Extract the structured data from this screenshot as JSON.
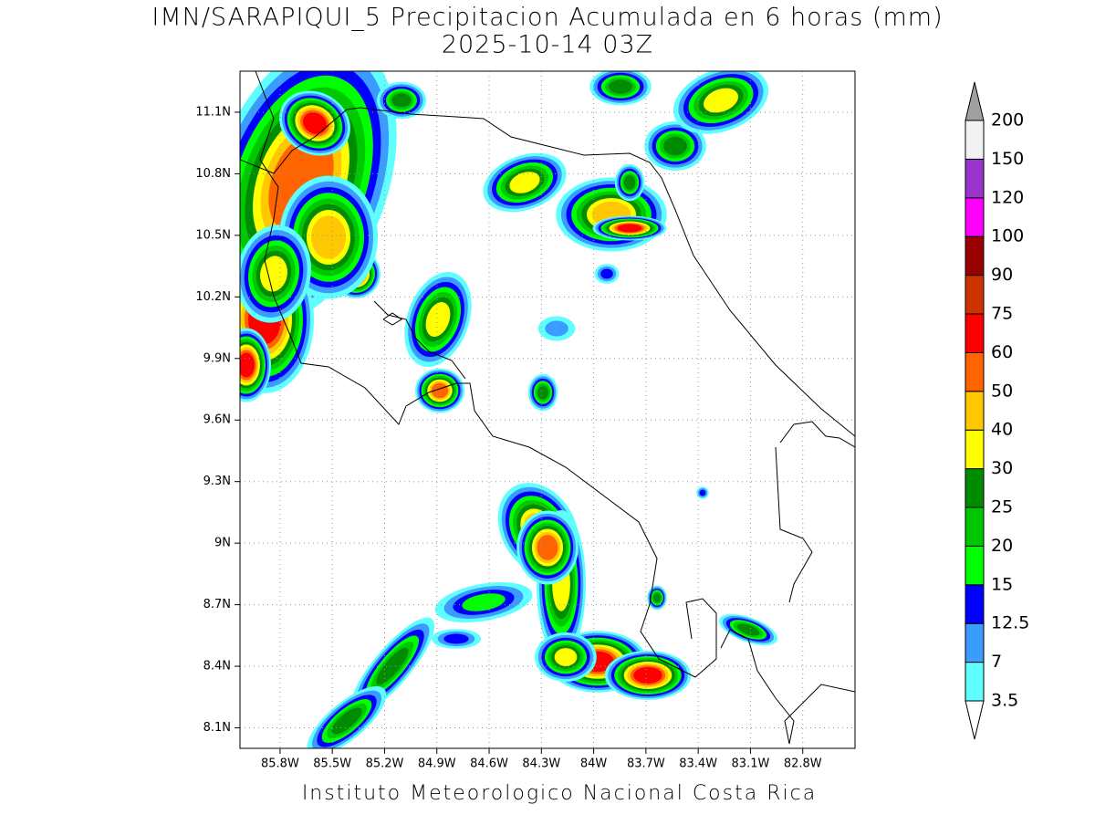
{
  "map": {
    "title": "IMN/SARAPIQUI_5 Precipitacion Acumulada en 6 horas (mm)",
    "subtitle": "2025-10-14 03Z",
    "footer": "Instituto Meteorologico Nacional Costa Rica",
    "lonlim": [
      -86.03,
      -82.5
    ],
    "latlim": [
      8.0,
      11.3
    ],
    "lat_ticks": [
      {
        "value": 11.1,
        "label": "11.1N"
      },
      {
        "value": 10.8,
        "label": "10.8N"
      },
      {
        "value": 10.5,
        "label": "10.5N"
      },
      {
        "value": 10.2,
        "label": "10.2N"
      },
      {
        "value": 9.9,
        "label": "9.9N"
      },
      {
        "value": 9.6,
        "label": "9.6N"
      },
      {
        "value": 9.3,
        "label": "9.3N"
      },
      {
        "value": 9,
        "label": "9N"
      },
      {
        "value": 8.7,
        "label": "8.7N"
      },
      {
        "value": 8.4,
        "label": "8.4N"
      },
      {
        "value": 8.1,
        "label": "8.1N"
      }
    ],
    "lon_ticks": [
      {
        "value": -85.8,
        "label": "85.8W"
      },
      {
        "value": -85.5,
        "label": "85.5W"
      },
      {
        "value": -85.2,
        "label": "85.2W"
      },
      {
        "value": -84.9,
        "label": "84.9W"
      },
      {
        "value": -84.6,
        "label": "84.6W"
      },
      {
        "value": -84.3,
        "label": "84.3W"
      },
      {
        "value": -84,
        "label": "84W"
      },
      {
        "value": -83.7,
        "label": "83.7W"
      },
      {
        "value": -83.4,
        "label": "83.4W"
      },
      {
        "value": -83.1,
        "label": "83.1W"
      },
      {
        "value": -82.8,
        "label": "82.8W"
      }
    ],
    "colorbar": {
      "levels": [
        3.5,
        7,
        12.5,
        15,
        20,
        25,
        30,
        40,
        50,
        60,
        75,
        90,
        100,
        120,
        150,
        200
      ],
      "colors": [
        "#5fffff",
        "#3c9bff",
        "#0000ff",
        "#00ff00",
        "#00c800",
        "#008c00",
        "#ffff00",
        "#ffc800",
        "#ff6400",
        "#ff0000",
        "#cc3300",
        "#990000",
        "#ff00ff",
        "#9933cc",
        "#f2f2f2"
      ],
      "under_color": "#ffffff",
      "over_color": "#a0a0a0"
    }
  }
}
